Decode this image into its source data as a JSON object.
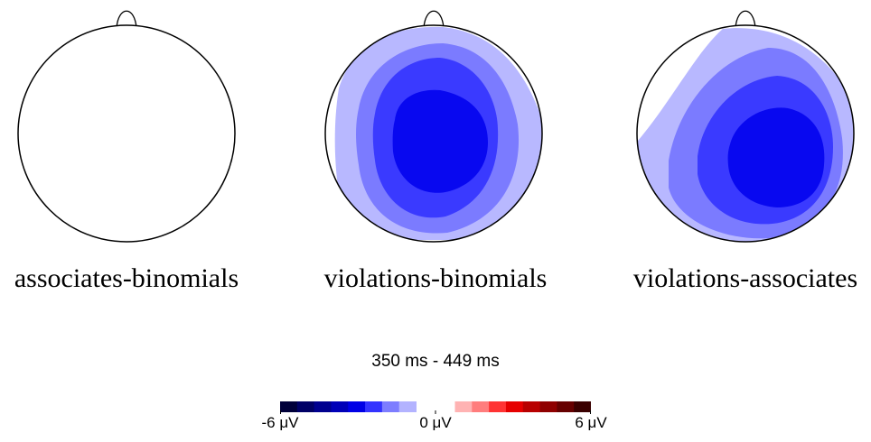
{
  "topomaps": [
    {
      "label": "associates-binomials",
      "effect": "none"
    },
    {
      "label": "violations-binomials",
      "effect": "negative-central"
    },
    {
      "label": "violations-associates",
      "effect": "negative-right-central"
    }
  ],
  "time_window": "350 ms - 449 ms",
  "colorbar": {
    "min_label": "-6 μV",
    "mid_label": "0 μV",
    "max_label": "6 μV",
    "negative_colors": [
      "#00003a",
      "#000066",
      "#00008f",
      "#0000b8",
      "#0000e6",
      "#3333ff",
      "#7d7dff",
      "#b3b3ff"
    ],
    "positive_colors": [
      "#ffb3b3",
      "#ff7d7d",
      "#ff3333",
      "#e60000",
      "#b80000",
      "#8f0000",
      "#660000",
      "#3a0000"
    ]
  },
  "level_colors": {
    "level1": "#b8b8ff",
    "level2": "#7b7bff",
    "level3": "#3a3aff",
    "level4": "#0808f0"
  }
}
